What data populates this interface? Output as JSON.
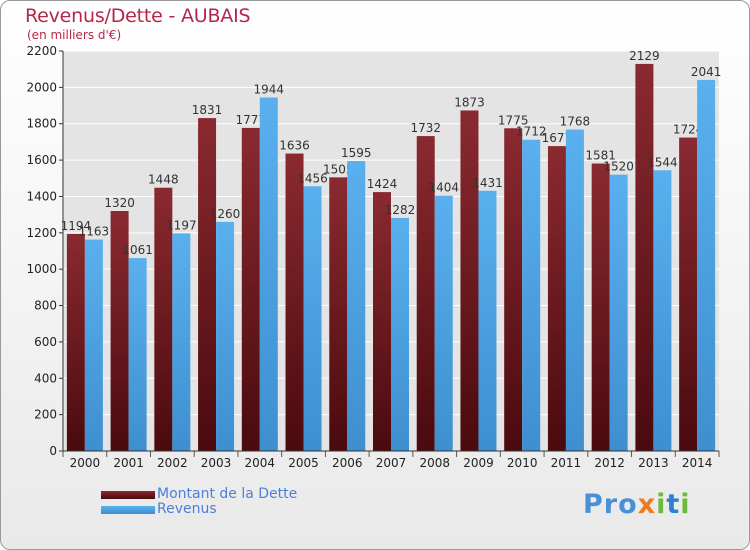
{
  "title": "Revenus/Dette - AUBAIS",
  "subtitle": "(en milliers d'€)",
  "colors": {
    "dette_top": "#8a2a30",
    "dette_bottom": "#4a0a0e",
    "revenus_top": "#5ab0ee",
    "revenus_bottom": "#3e8fd0",
    "accent_title": "#b5274a"
  },
  "chart_data": {
    "type": "bar",
    "categories": [
      "2000",
      "2001",
      "2002",
      "2003",
      "2004",
      "2005",
      "2006",
      "2007",
      "2008",
      "2009",
      "2010",
      "2011",
      "2012",
      "2013",
      "2014"
    ],
    "series": [
      {
        "name": "Montant de la Dette",
        "values": [
          1194,
          1320,
          1448,
          1831,
          1777,
          1636,
          1505,
          1424,
          1732,
          1873,
          1775,
          1677,
          1581,
          2129,
          1724
        ]
      },
      {
        "name": "Revenus",
        "values": [
          1163,
          1061,
          1197,
          1260,
          1944,
          1456,
          1595,
          1282,
          1404,
          1431,
          1712,
          1768,
          1520,
          1544,
          2041
        ]
      }
    ],
    "yticks": [
      0,
      200,
      400,
      600,
      800,
      1000,
      1200,
      1400,
      1600,
      1800,
      2000,
      2200
    ],
    "ylim": [
      0,
      2200
    ],
    "grid": true,
    "legend": "bottom-left"
  },
  "legend": {
    "items": [
      {
        "label": "Montant de la Dette"
      },
      {
        "label": "Revenus"
      }
    ]
  },
  "logo": {
    "text": "Proxiti"
  }
}
